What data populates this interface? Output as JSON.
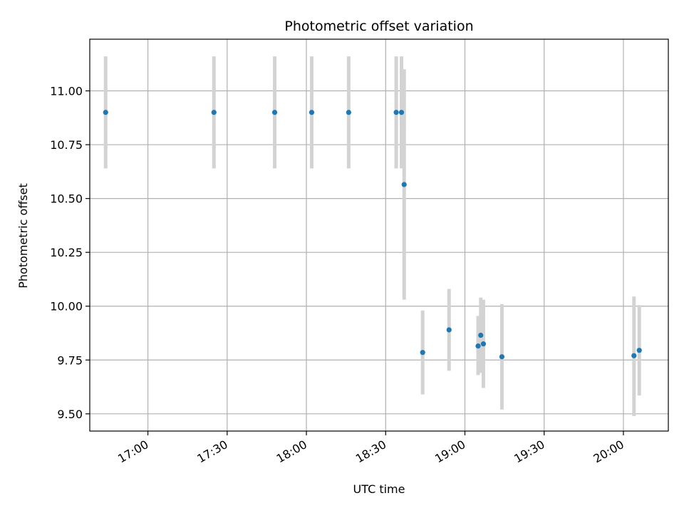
{
  "chart_data": {
    "type": "scatter",
    "title": "Photometric offset variation",
    "xlabel": "UTC time",
    "ylabel": "Photometric offset",
    "x_tick_labels": [
      "17:00",
      "17:30",
      "18:00",
      "18:30",
      "19:00",
      "19:30",
      "20:00"
    ],
    "y_tick_labels": [
      "9.50",
      "9.75",
      "10.00",
      "10.25",
      "10.50",
      "10.75",
      "11.00"
    ],
    "x_ticks": [
      "17:00",
      "17:30",
      "18:00",
      "18:30",
      "19:00",
      "19:30",
      "20:00"
    ],
    "y_ticks": [
      9.5,
      9.75,
      10.0,
      10.25,
      10.5,
      10.75,
      11.0
    ],
    "xlim": [
      "16:38",
      "20:17"
    ],
    "ylim": [
      9.42,
      11.24
    ],
    "grid": true,
    "marker_color": "#1f77b4",
    "errorbar_color": "#d3d3d3",
    "points": [
      {
        "x": "16:44",
        "y": 10.9,
        "low": 10.64,
        "high": 11.16
      },
      {
        "x": "17:25",
        "y": 10.9,
        "low": 10.64,
        "high": 11.16
      },
      {
        "x": "17:48",
        "y": 10.9,
        "low": 10.64,
        "high": 11.16
      },
      {
        "x": "18:02",
        "y": 10.9,
        "low": 10.64,
        "high": 11.16
      },
      {
        "x": "18:16",
        "y": 10.9,
        "low": 10.64,
        "high": 11.16
      },
      {
        "x": "18:34",
        "y": 10.9,
        "low": 10.64,
        "high": 11.16
      },
      {
        "x": "18:36",
        "y": 10.9,
        "low": 10.64,
        "high": 11.16
      },
      {
        "x": "18:37",
        "y": 10.565,
        "low": 10.03,
        "high": 11.1
      },
      {
        "x": "18:44",
        "y": 9.785,
        "low": 9.59,
        "high": 9.98
      },
      {
        "x": "18:54",
        "y": 9.89,
        "low": 9.7,
        "high": 10.08
      },
      {
        "x": "19:05",
        "y": 9.815,
        "low": 9.68,
        "high": 9.955
      },
      {
        "x": "19:06",
        "y": 9.865,
        "low": 9.69,
        "high": 10.04
      },
      {
        "x": "19:07",
        "y": 9.825,
        "low": 9.62,
        "high": 10.03
      },
      {
        "x": "19:14",
        "y": 9.765,
        "low": 9.52,
        "high": 10.01
      },
      {
        "x": "20:04",
        "y": 9.77,
        "low": 9.49,
        "high": 10.045
      },
      {
        "x": "20:06",
        "y": 9.795,
        "low": 9.585,
        "high": 10.005
      }
    ]
  }
}
